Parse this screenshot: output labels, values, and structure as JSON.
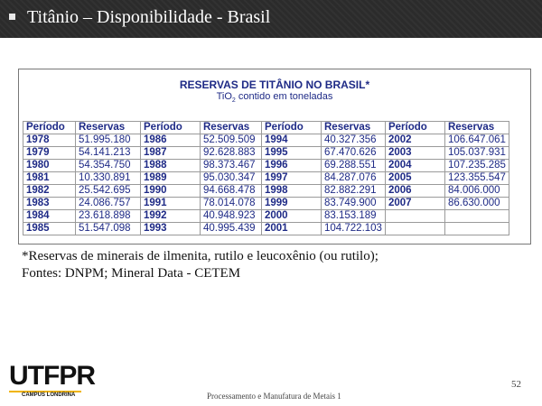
{
  "slide": {
    "title": "Titânio – Disponibilidade - Brasil",
    "footnote_line1": "*Reservas de minerais de ilmenita, rutilo e leucoxênio (ou rutilo);",
    "footnote_line2": "Fontes: DNPM; Mineral Data - CETEM",
    "footer": "Processamento e Manufatura de Metais 1",
    "page_number": "52",
    "logo_text": "UTFPR",
    "logo_campus": "CAMPUS LONDRINA"
  },
  "table": {
    "title": "RESERVAS DE TITÂNIO NO BRASIL*",
    "subtitle_pre": "TiO",
    "subtitle_sub": "2",
    "subtitle_post": " contido em toneladas",
    "headers": [
      "Período",
      "Reservas",
      "Período",
      "Reservas",
      "Período",
      "Reservas",
      "Período",
      "Reservas"
    ],
    "rows": [
      [
        "1978",
        "51.995.180",
        "1986",
        "52.509.509",
        "1994",
        "40.327.356",
        "2002",
        "106.647.061"
      ],
      [
        "1979",
        "54.141.213",
        "1987",
        "92.628.883",
        "1995",
        "67.470.626",
        "2003",
        "105.037.931"
      ],
      [
        "1980",
        "54.354.750",
        "1988",
        "98.373.467",
        "1996",
        "69.288.551",
        "2004",
        "107.235.285"
      ],
      [
        "1981",
        "10.330.891",
        "1989",
        "95.030.347",
        "1997",
        "84.287.076",
        "2005",
        "123.355.547"
      ],
      [
        "1982",
        "25.542.695",
        "1990",
        "94.668.478",
        "1998",
        "82.882.291",
        "2006",
        "84.006.000"
      ],
      [
        "1983",
        "24.086.757",
        "1991",
        "78.014.078",
        "1999",
        "83.749.900",
        "2007",
        "86.630.000"
      ],
      [
        "1984",
        "23.618.898",
        "1992",
        "40.948.923",
        "2000",
        "83.153.189",
        "",
        ""
      ],
      [
        "1985",
        "51.547.098",
        "1993",
        "40.995.439",
        "2001",
        "104.722.103",
        "",
        ""
      ]
    ]
  }
}
